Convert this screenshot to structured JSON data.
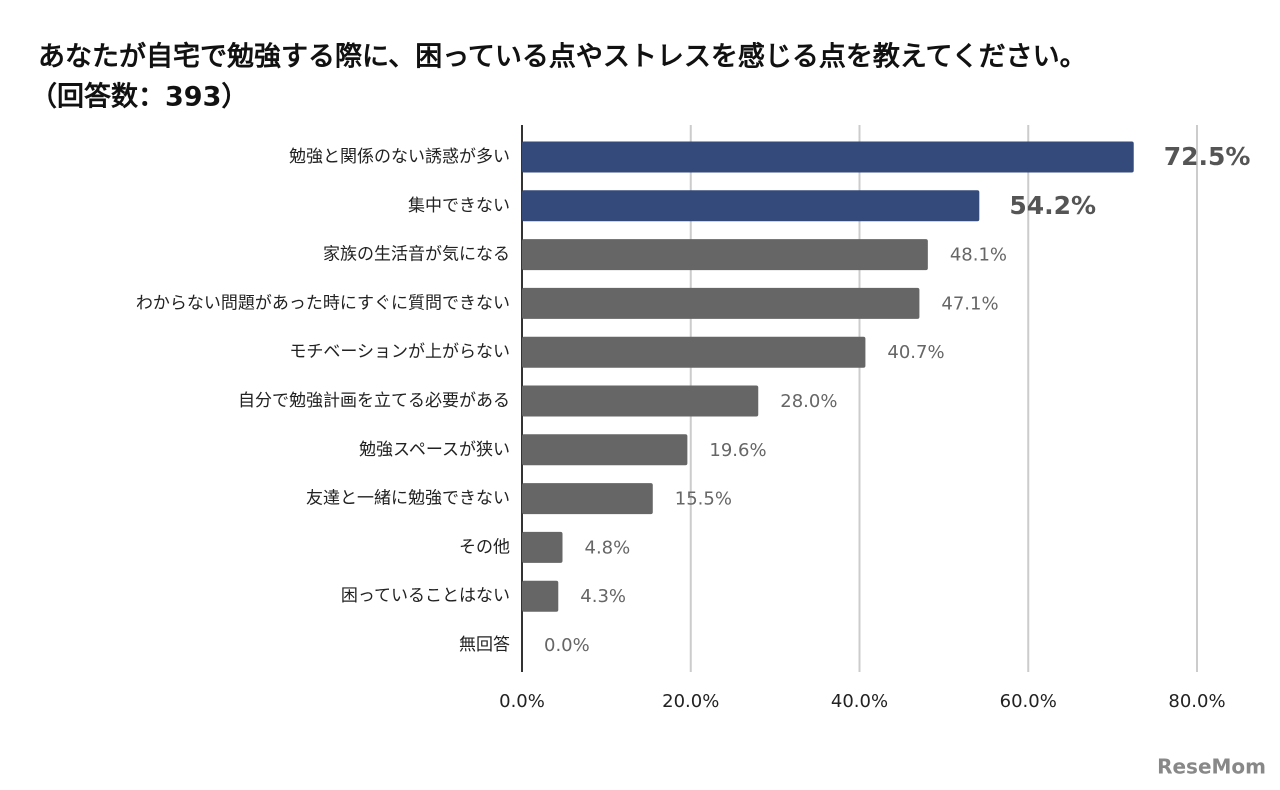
{
  "chart_data": {
    "type": "bar",
    "orientation": "horizontal",
    "title": "あなたが自宅で勉強する際に、困っている点やストレスを感じる点を教えてください。",
    "subtitle": "（回答数：393）",
    "categories": [
      "勉強と関係のない誘惑が多い",
      "集中できない",
      "家族の生活音が気になる",
      "わからない問題があった時にすぐに質問できない",
      "モチベーションが上がらない",
      "自分で勉強計画を立てる必要がある",
      "勉強スペースが狭い",
      "友達と一緒に勉強できない",
      "その他",
      "困っていることはない",
      "無回答"
    ],
    "values": [
      72.5,
      54.2,
      48.1,
      47.1,
      40.7,
      28.0,
      19.6,
      15.5,
      4.8,
      4.3,
      0.0
    ],
    "value_labels": [
      "72.5%",
      "54.2%",
      "48.1%",
      "47.1%",
      "40.7%",
      "28.0%",
      "19.6%",
      "15.5%",
      "4.8%",
      "4.3%",
      "0.0%"
    ],
    "color": "#666666",
    "colors": [
      "#344a7a",
      "#344a7a",
      "#666666",
      "#666666",
      "#666666",
      "#666666",
      "#666666",
      "#666666",
      "#666666",
      "#666666",
      "#666666"
    ],
    "xlim": [
      0,
      80
    ],
    "xticks": [
      {
        "value": 0,
        "label": "0.0%"
      },
      {
        "value": 20,
        "label": "20.0%"
      },
      {
        "value": 40,
        "label": "40.0%"
      },
      {
        "value": 60,
        "label": "60.0%"
      },
      {
        "value": 80,
        "label": "80.0%"
      }
    ],
    "grid": true,
    "watermark": "ReseMom"
  }
}
